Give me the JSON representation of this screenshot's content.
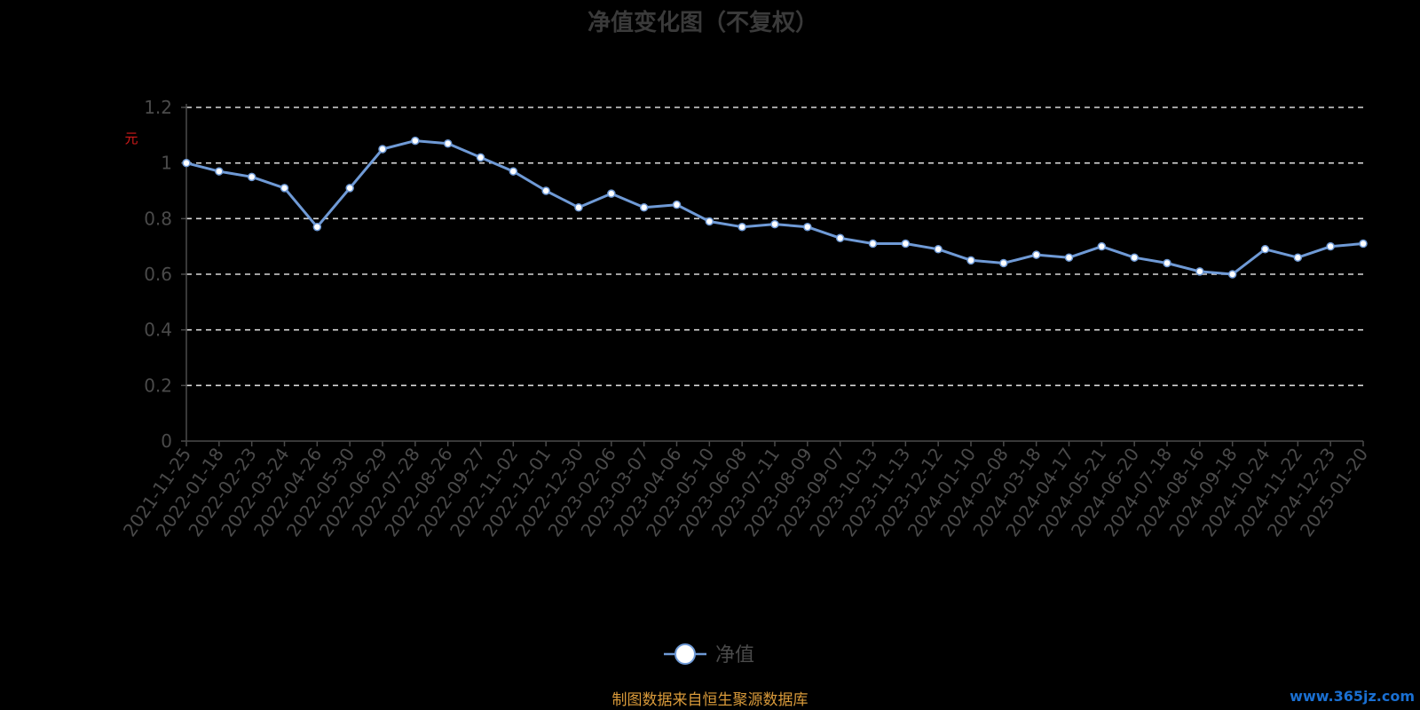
{
  "chart_data": {
    "type": "line",
    "title": "净值变化图（不复权）",
    "yunit": "元",
    "ylim": [
      0,
      1.2
    ],
    "yticks": [
      0,
      0.2,
      0.4,
      0.6,
      0.8,
      1,
      1.2
    ],
    "ytick_labels": [
      "0",
      "0.2",
      "0.4",
      "0.6",
      "0.8",
      "1",
      "1.2"
    ],
    "grid": true,
    "legend_position": "bottom-center",
    "categories": [
      "2021-11-25",
      "2022-01-18",
      "2022-02-23",
      "2022-03-24",
      "2022-04-26",
      "2022-05-30",
      "2022-06-29",
      "2022-07-28",
      "2022-08-26",
      "2022-09-27",
      "2022-11-02",
      "2022-12-01",
      "2022-12-30",
      "2023-02-06",
      "2023-03-07",
      "2023-04-06",
      "2023-05-10",
      "2023-06-08",
      "2023-07-11",
      "2023-08-09",
      "2023-09-07",
      "2023-10-13",
      "2023-11-13",
      "2023-12-12",
      "2024-01-10",
      "2024-02-08",
      "2024-03-18",
      "2024-04-17",
      "2024-05-21",
      "2024-06-20",
      "2024-07-18",
      "2024-08-16",
      "2024-09-18",
      "2024-10-24",
      "2024-11-22",
      "2024-12-23",
      "2025-01-20"
    ],
    "series": [
      {
        "name": "净值",
        "color": "#6f9ad6",
        "values": [
          1.0,
          0.97,
          0.95,
          0.91,
          0.77,
          0.91,
          1.05,
          1.08,
          1.07,
          1.02,
          0.97,
          0.9,
          0.84,
          0.89,
          0.84,
          0.85,
          0.79,
          0.77,
          0.78,
          0.77,
          0.73,
          0.71,
          0.71,
          0.69,
          0.65,
          0.64,
          0.67,
          0.66,
          0.7,
          0.66,
          0.64,
          0.61,
          0.6,
          0.69,
          0.66,
          0.7,
          0.71
        ]
      }
    ],
    "source": "制图数据来自恒生聚源数据库"
  },
  "watermark": "www.365jz.com"
}
